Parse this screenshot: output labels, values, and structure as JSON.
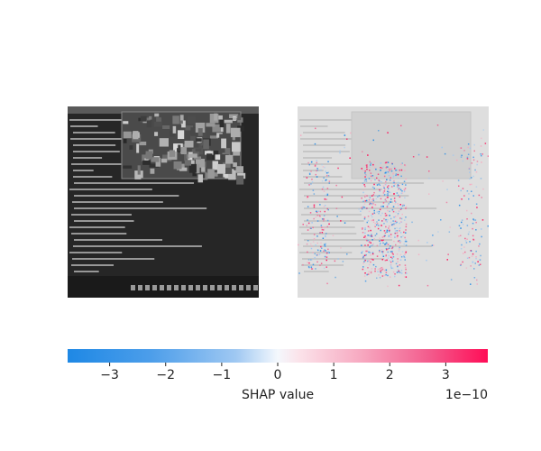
{
  "chart_data": {
    "type": "heatmap",
    "panels": [
      {
        "name": "original-image",
        "description_shown": "grayscale input image"
      },
      {
        "name": "shap-overlay",
        "description_shown": "SHAP value attribution map"
      }
    ],
    "colorbar": {
      "label": "SHAP value",
      "scale_offset": "1e−10",
      "range": [
        -3.75,
        3.75
      ],
      "ticks": [
        -3,
        -2,
        -1,
        0,
        1,
        2,
        3
      ],
      "tick_labels": [
        "−3",
        "−2",
        "−1",
        "0",
        "1",
        "2",
        "3"
      ],
      "color_negative": "#1e88e5",
      "color_neutral": "#ffffff",
      "color_positive": "#ff0d57"
    }
  }
}
